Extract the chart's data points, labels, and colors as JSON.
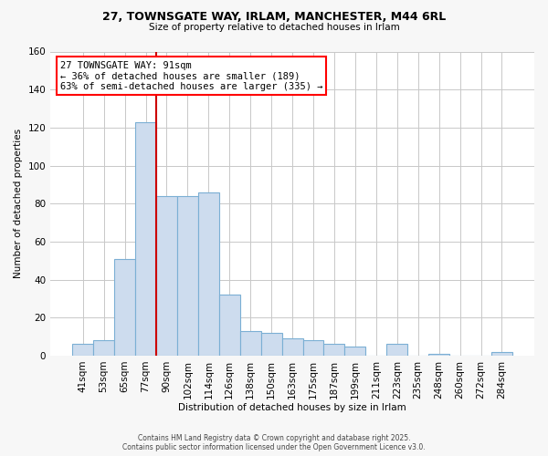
{
  "title_line1": "27, TOWNSGATE WAY, IRLAM, MANCHESTER, M44 6RL",
  "title_line2": "Size of property relative to detached houses in Irlam",
  "bar_labels": [
    "41sqm",
    "53sqm",
    "65sqm",
    "77sqm",
    "90sqm",
    "102sqm",
    "114sqm",
    "126sqm",
    "138sqm",
    "150sqm",
    "163sqm",
    "175sqm",
    "187sqm",
    "199sqm",
    "211sqm",
    "223sqm",
    "235sqm",
    "248sqm",
    "260sqm",
    "272sqm",
    "284sqm"
  ],
  "bar_values": [
    6,
    8,
    51,
    123,
    84,
    84,
    86,
    32,
    13,
    12,
    9,
    8,
    6,
    5,
    0,
    6,
    0,
    1,
    0,
    0,
    2
  ],
  "bar_color": "#cddcee",
  "bar_edge_color": "#7bafd4",
  "xlabel": "Distribution of detached houses by size in Irlam",
  "ylabel": "Number of detached properties",
  "ylim": [
    0,
    160
  ],
  "yticks": [
    0,
    20,
    40,
    60,
    80,
    100,
    120,
    140,
    160
  ],
  "property_label": "27 TOWNSGATE WAY: 91sqm",
  "annotation_line1": "← 36% of detached houses are smaller (189)",
  "annotation_line2": "63% of semi-detached houses are larger (335) →",
  "vline_x_index": 4,
  "vline_color": "#cc0000",
  "footer_line1": "Contains HM Land Registry data © Crown copyright and database right 2025.",
  "footer_line2": "Contains public sector information licensed under the Open Government Licence v3.0.",
  "bg_color": "#f7f7f7",
  "plot_bg_color": "#ffffff",
  "grid_color": "#c8c8c8"
}
